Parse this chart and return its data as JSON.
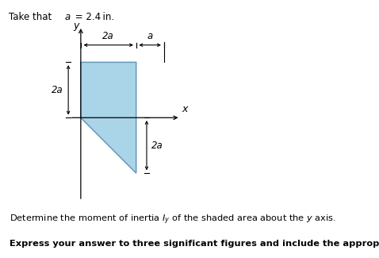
{
  "shape_fill": "#aad4e8",
  "shape_edge": "#6699bb",
  "header_bg": "#ddeef6",
  "fig_bg": "white",
  "fig_width": 4.78,
  "fig_height": 3.25,
  "dpi": 100,
  "label_2a_horiz": "2a",
  "label_a_horiz": "a",
  "label_2a_vert_left": "2a",
  "label_2a_vert_right": "2a",
  "label_x": "x",
  "label_y": "y",
  "header": "Take that ",
  "header_a": "a",
  "header_end": " = 2.4 in.",
  "text1_pre": "Determine the moment of inertia ",
  "text1_iy": "$I_y$",
  "text1_mid": " of the shaded area about the ",
  "text1_y": "$y$",
  "text1_end": " axis.",
  "text2": "Express your answer to three significant figures and include the appropriate units."
}
